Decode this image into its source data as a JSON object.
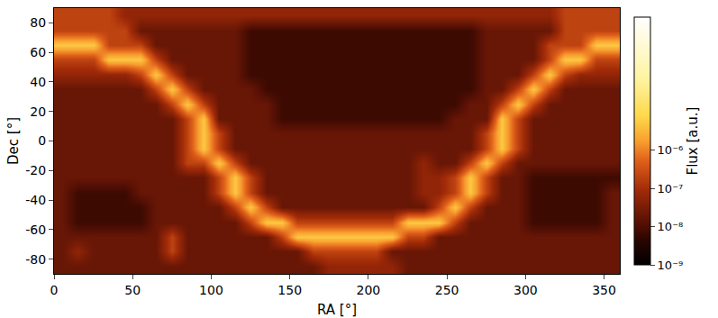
{
  "chart_data": {
    "type": "heatmap",
    "xlabel": "RA [°]",
    "ylabel": "Dec [°]",
    "xlim": [
      0,
      360
    ],
    "ylim": [
      -90,
      90
    ],
    "xticks": [
      0,
      50,
      100,
      150,
      200,
      250,
      300,
      350
    ],
    "yticks": [
      -80,
      -60,
      -40,
      -20,
      0,
      20,
      40,
      60,
      80
    ],
    "grid": true,
    "x": [
      5,
      15,
      25,
      35,
      45,
      55,
      65,
      75,
      85,
      95,
      105,
      115,
      125,
      135,
      145,
      155,
      165,
      175,
      185,
      195,
      205,
      215,
      225,
      235,
      245,
      255,
      265,
      275,
      285,
      295,
      305,
      315,
      325,
      335,
      345,
      355
    ],
    "y": [
      -85,
      -75,
      -65,
      -55,
      -45,
      -35,
      -25,
      -15,
      -5,
      5,
      15,
      25,
      35,
      45,
      55,
      65,
      75,
      85
    ],
    "values": [
      [
        2e-08,
        2e-08,
        2e-08,
        2e-08,
        2e-08,
        2e-08,
        2e-08,
        2e-08,
        2e-08,
        2e-08,
        2e-08,
        2e-08,
        2e-08,
        2e-08,
        2e-08,
        2e-08,
        2e-08,
        6e-08,
        6e-08,
        6e-08,
        6e-08,
        6e-08,
        2e-08,
        2e-08,
        2e-08,
        2e-08,
        2e-08,
        2e-08,
        2e-08,
        2e-08,
        2e-08,
        2e-08,
        2e-08,
        2e-08,
        2e-08,
        2e-08
      ],
      [
        2e-08,
        6e-08,
        2e-08,
        2e-08,
        2e-08,
        2e-08,
        2e-08,
        2e-07,
        2e-08,
        2e-08,
        2e-08,
        2e-08,
        2e-08,
        2e-08,
        2e-08,
        2e-08,
        2e-07,
        2e-07,
        2e-07,
        2e-07,
        2e-07,
        2e-08,
        2e-08,
        2e-08,
        2e-08,
        2e-08,
        2e-08,
        2e-08,
        2e-08,
        2e-08,
        2e-08,
        2e-08,
        2e-08,
        2e-08,
        2e-08,
        2e-08
      ],
      [
        2e-08,
        2e-08,
        2e-08,
        2e-08,
        2e-08,
        2e-08,
        2e-08,
        2e-07,
        2e-08,
        2e-08,
        2e-08,
        2e-08,
        2e-08,
        2e-08,
        2e-07,
        5e-06,
        5e-06,
        5e-06,
        5e-06,
        5e-06,
        5e-06,
        5e-06,
        2e-07,
        2e-07,
        2e-08,
        2e-08,
        2e-08,
        2e-08,
        2e-08,
        2e-08,
        2e-08,
        2e-08,
        2e-08,
        2e-08,
        2e-08,
        2e-08
      ],
      [
        2e-08,
        7e-09,
        7e-09,
        7e-09,
        7e-09,
        7e-09,
        2e-08,
        2e-08,
        2e-08,
        2e-08,
        2e-08,
        2e-08,
        2e-07,
        5e-06,
        5e-06,
        2e-07,
        2e-07,
        2e-07,
        2e-07,
        2e-07,
        2e-07,
        2e-07,
        5e-06,
        5e-06,
        5e-06,
        2e-07,
        2e-08,
        2e-08,
        2e-08,
        2e-08,
        7e-09,
        7e-09,
        7e-09,
        7e-09,
        7e-09,
        2e-08
      ],
      [
        2e-08,
        7e-09,
        7e-09,
        7e-09,
        7e-09,
        7e-09,
        2e-08,
        2e-08,
        2e-08,
        2e-08,
        2e-08,
        2e-07,
        5e-06,
        2e-07,
        2e-08,
        2e-08,
        2e-08,
        2e-08,
        2e-08,
        2e-08,
        2e-08,
        2e-08,
        2e-08,
        2e-08,
        2e-07,
        5e-06,
        2e-07,
        2e-08,
        2e-08,
        2e-08,
        7e-09,
        7e-09,
        7e-09,
        7e-09,
        7e-09,
        2e-08
      ],
      [
        2e-08,
        7e-09,
        7e-09,
        7e-09,
        7e-09,
        2e-08,
        2e-08,
        2e-08,
        2e-08,
        2e-08,
        2e-07,
        5e-06,
        2e-07,
        2e-08,
        2e-08,
        2e-08,
        2e-08,
        2e-08,
        2e-08,
        2e-08,
        2e-08,
        2e-08,
        2e-08,
        6e-08,
        6e-08,
        2e-07,
        5e-06,
        2e-07,
        2e-08,
        2e-08,
        7e-09,
        7e-09,
        7e-09,
        7e-09,
        7e-09,
        2e-08
      ],
      [
        2e-08,
        2e-08,
        2e-08,
        2e-08,
        2e-08,
        2e-08,
        2e-08,
        2e-08,
        2e-08,
        2e-08,
        2e-07,
        5e-06,
        2e-07,
        2e-08,
        2e-08,
        2e-08,
        2e-08,
        2e-08,
        2e-08,
        2e-08,
        2e-08,
        2e-08,
        2e-08,
        6e-08,
        6e-08,
        2e-07,
        5e-06,
        2e-07,
        2e-08,
        2e-08,
        7e-09,
        7e-09,
        7e-09,
        7e-09,
        7e-09,
        7e-09
      ],
      [
        2e-08,
        2e-08,
        2e-08,
        2e-08,
        2e-08,
        2e-08,
        2e-08,
        2e-08,
        2e-07,
        2e-07,
        5e-06,
        2e-07,
        2e-08,
        2e-08,
        2e-08,
        2e-08,
        2e-08,
        2e-08,
        2e-08,
        2e-08,
        2e-08,
        2e-08,
        2e-08,
        6e-08,
        2e-08,
        2e-08,
        2e-07,
        5e-06,
        2e-07,
        2e-08,
        2e-08,
        2e-08,
        2e-08,
        2e-08,
        2e-08,
        2e-08
      ],
      [
        2e-08,
        2e-08,
        2e-08,
        2e-08,
        2e-08,
        2e-08,
        2e-08,
        2e-08,
        2e-07,
        5e-06,
        2e-07,
        2e-08,
        2e-08,
        2e-08,
        2e-08,
        2e-08,
        2e-08,
        2e-08,
        2e-08,
        2e-08,
        2e-08,
        2e-08,
        2e-08,
        2e-08,
        2e-08,
        2e-08,
        2e-08,
        2e-07,
        5e-06,
        2e-07,
        2e-08,
        2e-08,
        2e-08,
        2e-08,
        2e-08,
        2e-08
      ],
      [
        2e-08,
        2e-08,
        2e-08,
        2e-08,
        2e-08,
        2e-08,
        2e-08,
        2e-08,
        2e-07,
        5e-06,
        2e-07,
        2e-08,
        2e-08,
        2e-08,
        2e-08,
        2e-08,
        2e-08,
        2e-08,
        2e-08,
        2e-08,
        2e-08,
        2e-08,
        2e-08,
        2e-08,
        2e-08,
        2e-08,
        2e-08,
        2e-07,
        5e-06,
        2e-07,
        2e-08,
        2e-08,
        2e-08,
        2e-08,
        2e-08,
        2e-08
      ],
      [
        2e-08,
        2e-08,
        2e-08,
        2e-08,
        2e-08,
        2e-08,
        2e-08,
        2e-08,
        2e-07,
        5e-06,
        2e-08,
        2e-08,
        2e-08,
        2e-08,
        7e-09,
        7e-09,
        7e-09,
        7e-09,
        7e-09,
        7e-09,
        7e-09,
        7e-09,
        7e-09,
        7e-09,
        7e-09,
        2e-08,
        2e-08,
        2e-08,
        5e-06,
        2e-07,
        2e-08,
        2e-08,
        2e-08,
        2e-08,
        2e-08,
        2e-08
      ],
      [
        2e-08,
        2e-08,
        2e-08,
        2e-08,
        2e-08,
        2e-08,
        2e-08,
        2e-07,
        5e-06,
        2e-07,
        2e-08,
        2e-08,
        2e-08,
        2e-08,
        7e-09,
        7e-09,
        7e-09,
        7e-09,
        7e-09,
        7e-09,
        7e-09,
        7e-09,
        7e-09,
        7e-09,
        7e-09,
        7e-09,
        2e-08,
        2e-08,
        2e-07,
        5e-06,
        2e-07,
        2e-08,
        2e-08,
        2e-08,
        2e-08,
        2e-08
      ],
      [
        2e-08,
        2e-08,
        2e-08,
        2e-08,
        2e-08,
        2e-08,
        2e-07,
        5e-06,
        2e-07,
        2e-08,
        2e-08,
        2e-08,
        2e-08,
        7e-09,
        7e-09,
        7e-09,
        7e-09,
        7e-09,
        7e-09,
        7e-09,
        7e-09,
        7e-09,
        7e-09,
        7e-09,
        7e-09,
        7e-09,
        7e-09,
        2e-08,
        2e-08,
        2e-07,
        5e-06,
        2e-07,
        2e-08,
        2e-08,
        2e-08,
        2e-08
      ],
      [
        6e-08,
        6e-08,
        6e-08,
        6e-08,
        6e-08,
        2e-07,
        5e-06,
        2e-07,
        2e-08,
        2e-08,
        2e-08,
        2e-08,
        7e-09,
        7e-09,
        7e-09,
        7e-09,
        7e-09,
        7e-09,
        7e-09,
        7e-09,
        7e-09,
        7e-09,
        7e-09,
        7e-09,
        7e-09,
        7e-09,
        7e-09,
        2e-08,
        2e-08,
        2e-08,
        2e-07,
        5e-06,
        2e-07,
        6e-08,
        6e-08,
        6e-08
      ],
      [
        2e-07,
        2e-07,
        2e-07,
        5e-06,
        5e-06,
        5e-06,
        2e-07,
        2e-08,
        2e-08,
        2e-08,
        2e-08,
        2e-08,
        7e-09,
        7e-09,
        7e-09,
        7e-09,
        7e-09,
        7e-09,
        7e-09,
        7e-09,
        7e-09,
        7e-09,
        7e-09,
        7e-09,
        7e-09,
        7e-09,
        7e-09,
        2e-08,
        2e-08,
        2e-08,
        2e-08,
        2e-07,
        5e-06,
        5e-06,
        2e-07,
        2e-07
      ],
      [
        5e-06,
        5e-06,
        5e-06,
        2e-07,
        2e-07,
        2e-07,
        2e-08,
        2e-08,
        2e-08,
        2e-08,
        2e-08,
        2e-08,
        7e-09,
        7e-09,
        7e-09,
        7e-09,
        7e-09,
        7e-09,
        7e-09,
        7e-09,
        7e-09,
        7e-09,
        7e-09,
        7e-09,
        7e-09,
        7e-09,
        7e-09,
        2e-08,
        2e-08,
        2e-08,
        2e-08,
        2e-07,
        2e-07,
        2e-07,
        5e-06,
        5e-06
      ],
      [
        2e-07,
        2e-07,
        2e-07,
        2e-07,
        2e-07,
        2e-08,
        2e-08,
        2e-08,
        2e-08,
        2e-08,
        2e-08,
        2e-08,
        7e-09,
        7e-09,
        7e-09,
        7e-09,
        7e-09,
        7e-09,
        7e-09,
        7e-09,
        7e-09,
        7e-09,
        7e-09,
        7e-09,
        7e-09,
        7e-09,
        7e-09,
        2e-08,
        2e-08,
        2e-08,
        2e-08,
        2e-08,
        2e-07,
        2e-07,
        2e-07,
        2e-07
      ],
      [
        2e-07,
        2e-07,
        2e-07,
        2e-07,
        6e-08,
        6e-08,
        6e-08,
        6e-08,
        6e-08,
        6e-08,
        6e-08,
        6e-08,
        6e-08,
        6e-08,
        6e-08,
        6e-08,
        6e-08,
        6e-08,
        6e-08,
        6e-08,
        6e-08,
        6e-08,
        6e-08,
        6e-08,
        6e-08,
        6e-08,
        6e-08,
        6e-08,
        6e-08,
        6e-08,
        6e-08,
        6e-08,
        2e-07,
        2e-07,
        2e-07,
        2e-07
      ]
    ],
    "colorbar": {
      "title": "Flux [a.u.]",
      "log": true,
      "lim": [
        1e-09,
        0.003
      ],
      "ticks": [
        {
          "value": 1e-09,
          "label": "10⁻⁹"
        },
        {
          "value": 1e-08,
          "label": "10⁻⁸"
        },
        {
          "value": 1e-07,
          "label": "10⁻⁷"
        },
        {
          "value": 1e-06,
          "label": "10⁻⁶"
        }
      ]
    }
  }
}
